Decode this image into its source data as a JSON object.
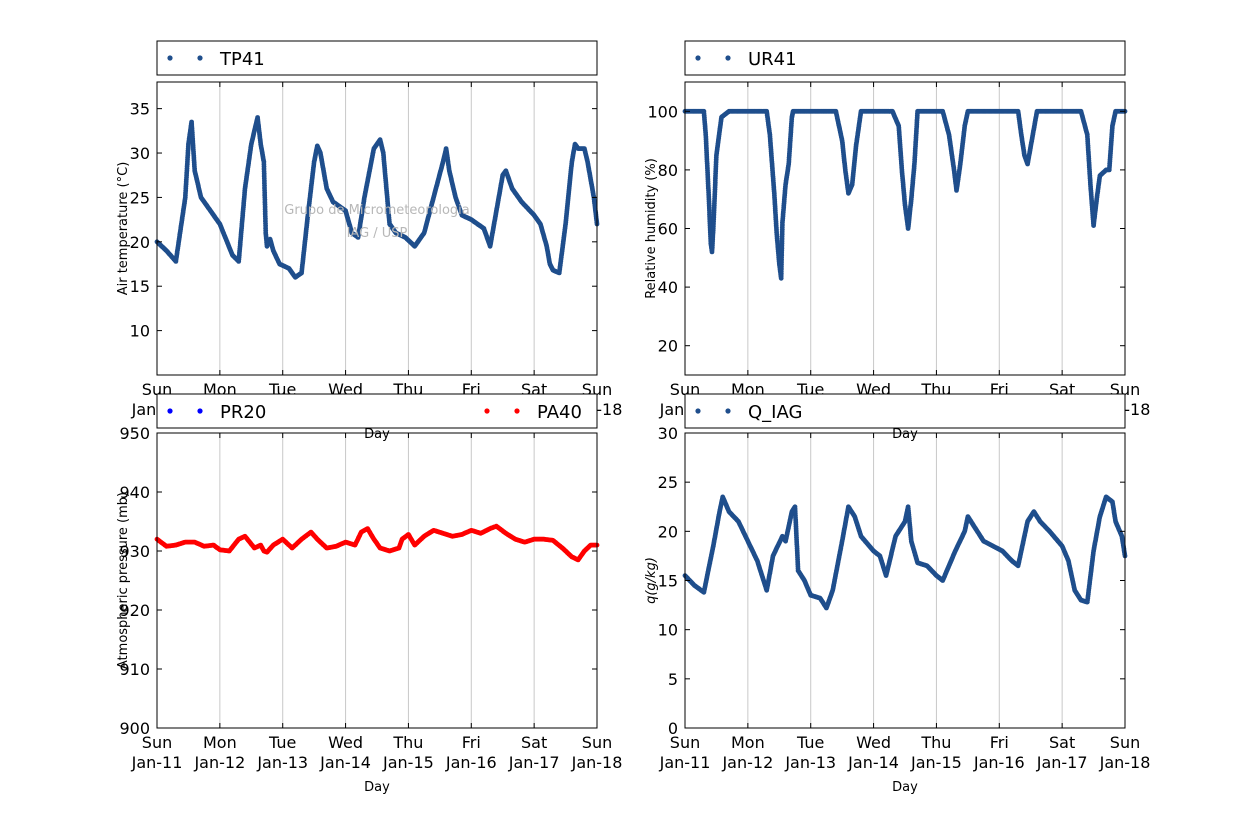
{
  "x_ticks": {
    "weekday": [
      "Sun",
      "Mon",
      "Tue",
      "Wed",
      "Thu",
      "Fri",
      "Sat",
      "Sun"
    ],
    "date": [
      "Jan-11",
      "Jan-12",
      "Jan-13",
      "Jan-14",
      "Jan-15",
      "Jan-16",
      "Jan-17",
      "Jan-18"
    ]
  },
  "watermark": {
    "line1": "Grupo de Micrometeorologia",
    "line2": "IAG / USP"
  },
  "colors": {
    "navy": "#1f4e8c",
    "blue": "#0000ff",
    "red": "#ff0000",
    "grid": "#c8c8c8"
  },
  "chart_data": [
    {
      "type": "scatter",
      "id": "temperature",
      "title": "",
      "xlabel": "Day",
      "ylabel": "Air temperature (°C)",
      "xlim": [
        "Jan-11",
        "Jan-18"
      ],
      "ylim": [
        5,
        38
      ],
      "yticks": [
        10,
        15,
        20,
        25,
        30,
        35
      ],
      "grid": "x",
      "legend_position": "above",
      "series": [
        {
          "name": "TP41",
          "color": "#1f4e8c",
          "points": [
            [
              0,
              20
            ],
            [
              0.15,
              19
            ],
            [
              0.3,
              17.8
            ],
            [
              0.45,
              25
            ],
            [
              0.5,
              31
            ],
            [
              0.55,
              33.5
            ],
            [
              0.6,
              28
            ],
            [
              0.7,
              25
            ],
            [
              0.85,
              23.5
            ],
            [
              1.0,
              22
            ],
            [
              1.2,
              18.5
            ],
            [
              1.3,
              17.8
            ],
            [
              1.4,
              26
            ],
            [
              1.5,
              31
            ],
            [
              1.6,
              34
            ],
            [
              1.65,
              31
            ],
            [
              1.7,
              29
            ],
            [
              1.73,
              21
            ],
            [
              1.75,
              19.5
            ],
            [
              1.8,
              20.3
            ],
            [
              1.85,
              19
            ],
            [
              1.95,
              17.5
            ],
            [
              2.1,
              17
            ],
            [
              2.2,
              16
            ],
            [
              2.3,
              16.5
            ],
            [
              2.4,
              23
            ],
            [
              2.5,
              29
            ],
            [
              2.55,
              30.8
            ],
            [
              2.6,
              30
            ],
            [
              2.7,
              26
            ],
            [
              2.8,
              24.5
            ],
            [
              3.0,
              23.5
            ],
            [
              3.1,
              21
            ],
            [
              3.2,
              20.5
            ],
            [
              3.3,
              25
            ],
            [
              3.45,
              30.5
            ],
            [
              3.55,
              31.5
            ],
            [
              3.6,
              30
            ],
            [
              3.65,
              26
            ],
            [
              3.7,
              22
            ],
            [
              3.8,
              21
            ],
            [
              3.95,
              20.5
            ],
            [
              4.1,
              19.5
            ],
            [
              4.25,
              21
            ],
            [
              4.4,
              25
            ],
            [
              4.55,
              29
            ],
            [
              4.6,
              30.5
            ],
            [
              4.65,
              28
            ],
            [
              4.75,
              25
            ],
            [
              4.85,
              23
            ],
            [
              5.0,
              22.5
            ],
            [
              5.2,
              21.5
            ],
            [
              5.3,
              19.5
            ],
            [
              5.4,
              23.5
            ],
            [
              5.5,
              27.5
            ],
            [
              5.55,
              28
            ],
            [
              5.65,
              26
            ],
            [
              5.8,
              24.5
            ],
            [
              6.0,
              23
            ],
            [
              6.1,
              22
            ],
            [
              6.2,
              19.5
            ],
            [
              6.25,
              17.5
            ],
            [
              6.3,
              16.8
            ],
            [
              6.4,
              16.5
            ],
            [
              6.5,
              22
            ],
            [
              6.6,
              29
            ],
            [
              6.65,
              31
            ],
            [
              6.7,
              30.5
            ],
            [
              6.8,
              30.5
            ],
            [
              6.85,
              29
            ],
            [
              6.95,
              25
            ],
            [
              7.0,
              22
            ]
          ]
        }
      ]
    },
    {
      "type": "scatter",
      "id": "humidity",
      "title": "",
      "xlabel": "Day",
      "ylabel": "Relative humidity (%)",
      "xlim": [
        "Jan-11",
        "Jan-18"
      ],
      "ylim": [
        10,
        110
      ],
      "yticks": [
        20,
        40,
        60,
        80,
        100
      ],
      "grid": "x",
      "legend_position": "above",
      "series": [
        {
          "name": "UR41",
          "color": "#1f4e8c",
          "points": [
            [
              0,
              100
            ],
            [
              0.3,
              100
            ],
            [
              0.33,
              92
            ],
            [
              0.38,
              70
            ],
            [
              0.41,
              55
            ],
            [
              0.43,
              52
            ],
            [
              0.45,
              60
            ],
            [
              0.5,
              85
            ],
            [
              0.58,
              98
            ],
            [
              0.7,
              100
            ],
            [
              1.3,
              100
            ],
            [
              1.35,
              92
            ],
            [
              1.42,
              72
            ],
            [
              1.46,
              58
            ],
            [
              1.5,
              48
            ],
            [
              1.53,
              43
            ],
            [
              1.55,
              62
            ],
            [
              1.6,
              75
            ],
            [
              1.65,
              82
            ],
            [
              1.7,
              98
            ],
            [
              1.72,
              100
            ],
            [
              2.2,
              100
            ],
            [
              2.4,
              100
            ],
            [
              2.5,
              90
            ],
            [
              2.55,
              80
            ],
            [
              2.6,
              72
            ],
            [
              2.66,
              75
            ],
            [
              2.72,
              88
            ],
            [
              2.8,
              100
            ],
            [
              3.3,
              100
            ],
            [
              3.4,
              95
            ],
            [
              3.45,
              80
            ],
            [
              3.5,
              68
            ],
            [
              3.55,
              60
            ],
            [
              3.6,
              70
            ],
            [
              3.65,
              82
            ],
            [
              3.7,
              100
            ],
            [
              4.1,
              100
            ],
            [
              4.2,
              92
            ],
            [
              4.28,
              80
            ],
            [
              4.32,
              73
            ],
            [
              4.38,
              82
            ],
            [
              4.45,
              95
            ],
            [
              4.5,
              100
            ],
            [
              5.3,
              100
            ],
            [
              5.35,
              92
            ],
            [
              5.4,
              85
            ],
            [
              5.45,
              82
            ],
            [
              5.5,
              88
            ],
            [
              5.6,
              100
            ],
            [
              6.2,
              100
            ],
            [
              6.3,
              100
            ],
            [
              6.4,
              92
            ],
            [
              6.45,
              75
            ],
            [
              6.5,
              61
            ],
            [
              6.55,
              70
            ],
            [
              6.6,
              78
            ],
            [
              6.7,
              80
            ],
            [
              6.75,
              80
            ],
            [
              6.8,
              95
            ],
            [
              6.85,
              100
            ],
            [
              7.0,
              100
            ]
          ]
        }
      ]
    },
    {
      "type": "scatter",
      "id": "pressure",
      "title": "",
      "xlabel": "Day",
      "ylabel": "Atmospheric pressure (mb)",
      "xlim": [
        "Jan-11",
        "Jan-18"
      ],
      "ylim": [
        900,
        950
      ],
      "yticks": [
        900,
        910,
        920,
        930,
        940,
        950
      ],
      "grid": "x",
      "legend_position": "above",
      "series": [
        {
          "name": "PR20",
          "color": "#0000ff",
          "points": []
        },
        {
          "name": "PA40",
          "color": "#ff0000",
          "points": [
            [
              0,
              932
            ],
            [
              0.15,
              930.8
            ],
            [
              0.3,
              931
            ],
            [
              0.45,
              931.5
            ],
            [
              0.6,
              931.5
            ],
            [
              0.75,
              930.8
            ],
            [
              0.9,
              931
            ],
            [
              1.0,
              930.2
            ],
            [
              1.15,
              930
            ],
            [
              1.3,
              932
            ],
            [
              1.4,
              932.5
            ],
            [
              1.55,
              930.5
            ],
            [
              1.65,
              931
            ],
            [
              1.7,
              930
            ],
            [
              1.75,
              929.8
            ],
            [
              1.85,
              931
            ],
            [
              2.0,
              932
            ],
            [
              2.15,
              930.5
            ],
            [
              2.3,
              932
            ],
            [
              2.45,
              933.2
            ],
            [
              2.55,
              932
            ],
            [
              2.7,
              930.5
            ],
            [
              2.85,
              930.8
            ],
            [
              3.0,
              931.5
            ],
            [
              3.15,
              931
            ],
            [
              3.25,
              933.2
            ],
            [
              3.35,
              933.8
            ],
            [
              3.45,
              932
            ],
            [
              3.55,
              930.5
            ],
            [
              3.7,
              930
            ],
            [
              3.85,
              930.5
            ],
            [
              3.9,
              932
            ],
            [
              4.0,
              932.8
            ],
            [
              4.1,
              931
            ],
            [
              4.25,
              932.5
            ],
            [
              4.4,
              933.5
            ],
            [
              4.55,
              933
            ],
            [
              4.7,
              932.5
            ],
            [
              4.85,
              932.8
            ],
            [
              5.0,
              933.5
            ],
            [
              5.15,
              933
            ],
            [
              5.3,
              933.8
            ],
            [
              5.4,
              934.2
            ],
            [
              5.55,
              933
            ],
            [
              5.7,
              932
            ],
            [
              5.85,
              931.5
            ],
            [
              6.0,
              932
            ],
            [
              6.15,
              932
            ],
            [
              6.3,
              931.8
            ],
            [
              6.45,
              930.5
            ],
            [
              6.6,
              929
            ],
            [
              6.7,
              928.5
            ],
            [
              6.8,
              930
            ],
            [
              6.9,
              931
            ],
            [
              7.0,
              931
            ]
          ]
        }
      ]
    },
    {
      "type": "scatter",
      "id": "specific_humidity",
      "title": "",
      "xlabel": "Day",
      "ylabel": "q(g/kg)",
      "xlim": [
        "Jan-11",
        "Jan-18"
      ],
      "ylim": [
        0,
        30
      ],
      "yticks": [
        0,
        5,
        10,
        15,
        20,
        25,
        30
      ],
      "grid": "x",
      "legend_position": "above",
      "series": [
        {
          "name": "Q_IAG",
          "color": "#1f4e8c",
          "points": [
            [
              0,
              15.5
            ],
            [
              0.15,
              14.5
            ],
            [
              0.3,
              13.8
            ],
            [
              0.45,
              18.5
            ],
            [
              0.55,
              22
            ],
            [
              0.6,
              23.5
            ],
            [
              0.7,
              22
            ],
            [
              0.85,
              21
            ],
            [
              1.0,
              19
            ],
            [
              1.15,
              17
            ],
            [
              1.3,
              14
            ],
            [
              1.4,
              17.5
            ],
            [
              1.55,
              19.5
            ],
            [
              1.6,
              19
            ],
            [
              1.7,
              22
            ],
            [
              1.75,
              22.5
            ],
            [
              1.8,
              16
            ],
            [
              1.9,
              15
            ],
            [
              2.0,
              13.5
            ],
            [
              2.15,
              13.2
            ],
            [
              2.25,
              12.2
            ],
            [
              2.35,
              14
            ],
            [
              2.5,
              19
            ],
            [
              2.6,
              22.5
            ],
            [
              2.7,
              21.5
            ],
            [
              2.8,
              19.5
            ],
            [
              3.0,
              18
            ],
            [
              3.1,
              17.5
            ],
            [
              3.2,
              15.5
            ],
            [
              3.35,
              19.5
            ],
            [
              3.5,
              21
            ],
            [
              3.55,
              22.5
            ],
            [
              3.6,
              19
            ],
            [
              3.7,
              16.8
            ],
            [
              3.85,
              16.5
            ],
            [
              4.0,
              15.5
            ],
            [
              4.1,
              15
            ],
            [
              4.3,
              18
            ],
            [
              4.45,
              20
            ],
            [
              4.5,
              21.5
            ],
            [
              4.6,
              20.5
            ],
            [
              4.75,
              19
            ],
            [
              4.9,
              18.5
            ],
            [
              5.05,
              18
            ],
            [
              5.2,
              17
            ],
            [
              5.3,
              16.5
            ],
            [
              5.45,
              21
            ],
            [
              5.55,
              22
            ],
            [
              5.65,
              21
            ],
            [
              5.8,
              20
            ],
            [
              6.0,
              18.5
            ],
            [
              6.1,
              17
            ],
            [
              6.2,
              14
            ],
            [
              6.3,
              13
            ],
            [
              6.4,
              12.8
            ],
            [
              6.5,
              18
            ],
            [
              6.6,
              21.5
            ],
            [
              6.7,
              23.5
            ],
            [
              6.8,
              23
            ],
            [
              6.85,
              21
            ],
            [
              6.95,
              19.5
            ],
            [
              7.0,
              17.5
            ]
          ]
        }
      ]
    }
  ]
}
